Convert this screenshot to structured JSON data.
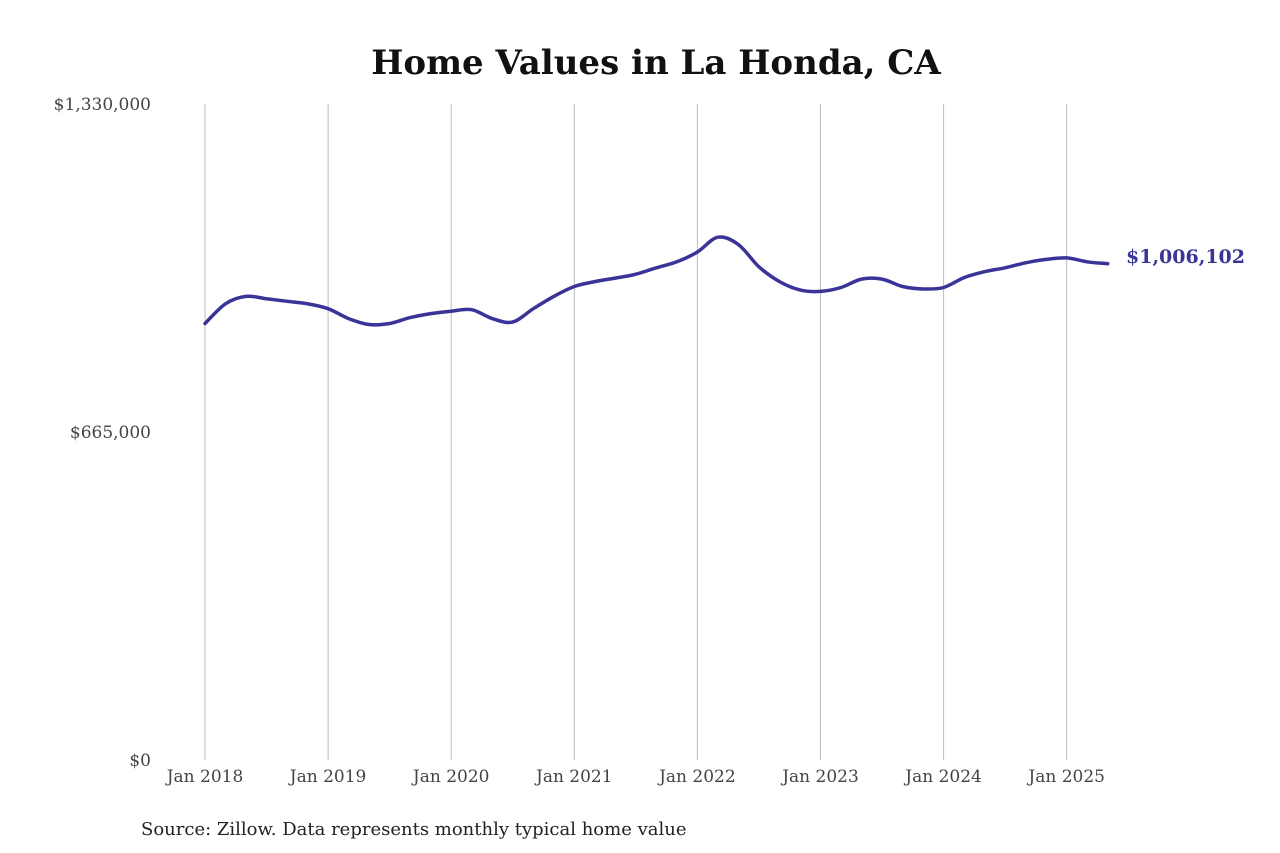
{
  "chart_data": {
    "type": "line",
    "title": "Home Values in La Honda, CA",
    "xlabel": "",
    "ylabel": "",
    "ylim": [
      0,
      1330000
    ],
    "y_ticks": [
      {
        "value": 0,
        "label": "$0"
      },
      {
        "value": 665000,
        "label": "$665,000"
      },
      {
        "value": 1330000,
        "label": "$1,330,000"
      }
    ],
    "x_ticks": [
      {
        "value": "2018-01",
        "label": "Jan 2018"
      },
      {
        "value": "2019-01",
        "label": "Jan 2019"
      },
      {
        "value": "2020-01",
        "label": "Jan 2020"
      },
      {
        "value": "2021-01",
        "label": "Jan 2021"
      },
      {
        "value": "2022-01",
        "label": "Jan 2022"
      },
      {
        "value": "2023-01",
        "label": "Jan 2023"
      },
      {
        "value": "2024-01",
        "label": "Jan 2024"
      },
      {
        "value": "2025-01",
        "label": "Jan 2025"
      }
    ],
    "grid": "vertical",
    "line_color": "#3a3498",
    "end_label": "$1,006,102",
    "series": [
      {
        "x": [
          "2018-01",
          "2018-03",
          "2018-05",
          "2018-07",
          "2018-09",
          "2018-11",
          "2019-01",
          "2019-03",
          "2019-05",
          "2019-07",
          "2019-09",
          "2019-11",
          "2020-01",
          "2020-03",
          "2020-05",
          "2020-07",
          "2020-09",
          "2020-11",
          "2021-01",
          "2021-03",
          "2021-05",
          "2021-07",
          "2021-09",
          "2021-11",
          "2022-01",
          "2022-03",
          "2022-05",
          "2022-07",
          "2022-09",
          "2022-11",
          "2023-01",
          "2023-03",
          "2023-05",
          "2023-07",
          "2023-09",
          "2023-11",
          "2024-01",
          "2024-03",
          "2024-05",
          "2024-07",
          "2024-09",
          "2024-11",
          "2025-01",
          "2025-03",
          "2025-05"
        ],
        "values": [
          885000,
          925000,
          940000,
          935000,
          930000,
          925000,
          915000,
          895000,
          883000,
          885000,
          897000,
          905000,
          910000,
          913000,
          895000,
          888000,
          915000,
          940000,
          960000,
          970000,
          977000,
          985000,
          998000,
          1010000,
          1030000,
          1060000,
          1045000,
          1000000,
          970000,
          953000,
          950000,
          958000,
          975000,
          975000,
          960000,
          955000,
          958000,
          978000,
          990000,
          998000,
          1008000,
          1015000,
          1018000,
          1010000,
          1006102
        ]
      }
    ]
  },
  "source": "Source: Zillow. Data represents monthly typical home value"
}
